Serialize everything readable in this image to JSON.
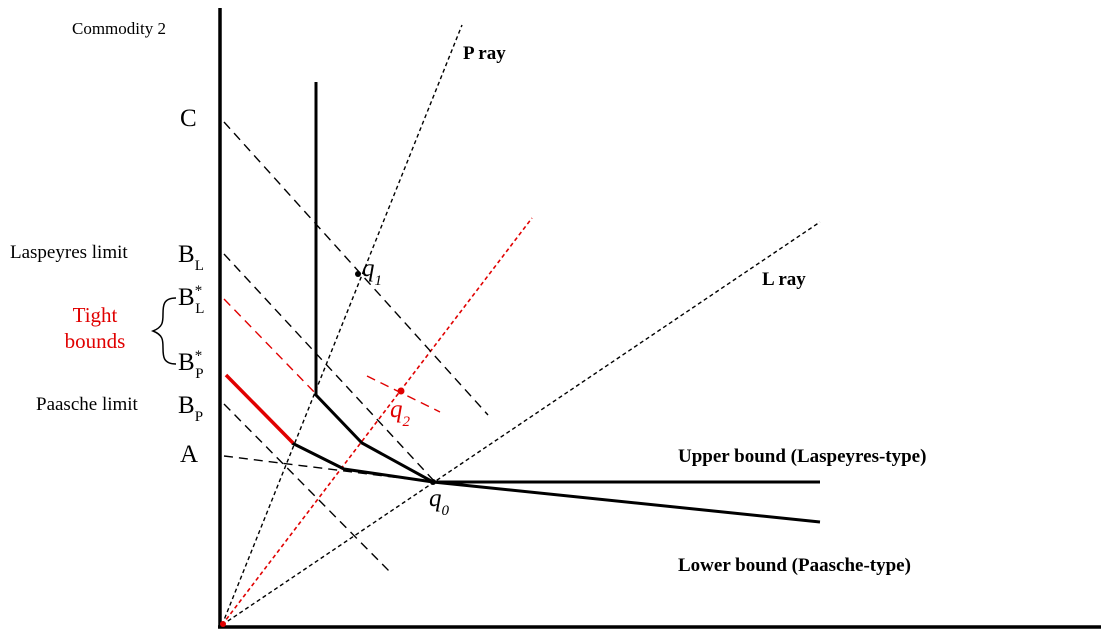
{
  "axis": {
    "y_label": "Commodity 2"
  },
  "rays": {
    "p_ray": "P  ray",
    "l_ray": "L ray"
  },
  "points": {
    "c": "C",
    "a": "A",
    "q_symbol": "q",
    "q0_sub": "0",
    "q1_sub": "1",
    "q2_sub": "2"
  },
  "labels": {
    "laspeyres_limit": "Laspeyres limit",
    "paasche_limit": "Paasche limit",
    "b_letter": "B",
    "sub_l": "L",
    "sub_p": "P",
    "star": "*",
    "tight_line1": "Tight",
    "tight_line2": "bounds"
  },
  "bounds": {
    "upper": "Upper bound (Laspeyres-type)",
    "lower": "Lower bound (Paasche-type)"
  },
  "colors": {
    "highlight": "#e00000",
    "ink": "#000000"
  }
}
